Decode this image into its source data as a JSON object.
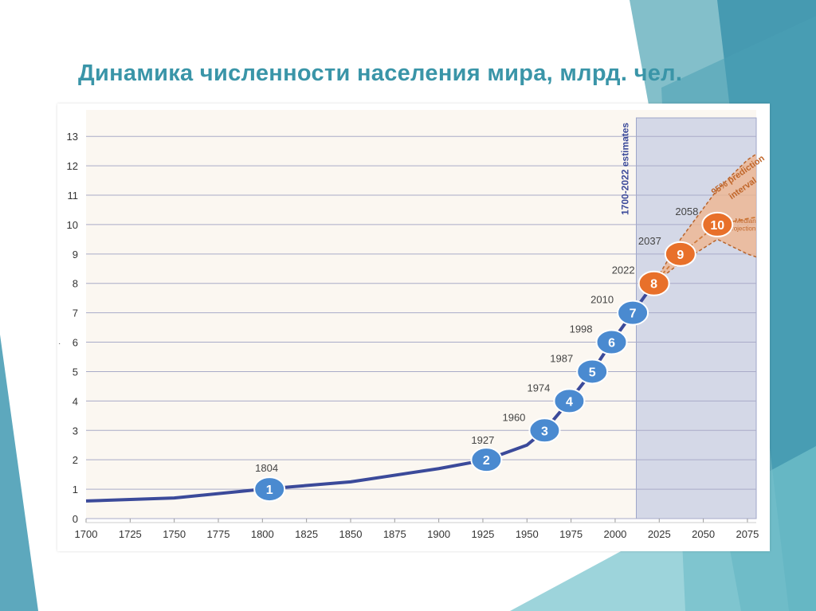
{
  "slide": {
    "title": "Динамика численности населения мира, млрд. чел.",
    "accent_color": "#3a95a8"
  },
  "chart_data": {
    "type": "line",
    "title": "",
    "xlabel": "",
    "ylabel": "",
    "xlim": [
      1700,
      2080
    ],
    "ylim": [
      0,
      13
    ],
    "grid": true,
    "x_ticks": [
      1700,
      1725,
      1750,
      1775,
      1800,
      1825,
      1850,
      1875,
      1900,
      1925,
      1950,
      1975,
      2000,
      2025,
      2050,
      2075
    ],
    "x_tick_labels": [
      "1700",
      "1725",
      "1750",
      "1775",
      "1800",
      "1825",
      "1850",
      "1875",
      "1900",
      "1925",
      "1950",
      "1975",
      "2000",
      "2025",
      "2050",
      "2075"
    ],
    "y_ticks": [
      0,
      1,
      2,
      3,
      4,
      5,
      6,
      7,
      8,
      9,
      10,
      11,
      12,
      13
    ],
    "y_tick_labels": [
      "0",
      "1",
      "2",
      "3",
      "4",
      "5",
      "6",
      "7",
      "8",
      "9",
      "10",
      "11",
      "12",
      "13"
    ],
    "estimates_region": {
      "label": "1700-2022 estimates",
      "x_start": 2012,
      "x_end": 2080,
      "color": "#d4d8e7"
    },
    "series": [
      {
        "name": "estimates",
        "color": "#3b4a9a",
        "x": [
          1700,
          1750,
          1800,
          1850,
          1900,
          1927,
          1950,
          1960,
          1974,
          1987,
          1998,
          2010,
          2022
        ],
        "y": [
          0.6,
          0.7,
          1.0,
          1.25,
          1.7,
          2.0,
          2.5,
          3.0,
          4.0,
          5.0,
          6.0,
          7.0,
          8.0
        ]
      },
      {
        "name": "Median projection",
        "color": "#cf7a3a",
        "x": [
          2022,
          2037,
          2058,
          2075,
          2080
        ],
        "y": [
          8.0,
          9.0,
          10.0,
          10.2,
          10.25
        ]
      }
    ],
    "prediction_interval": {
      "label_line1": "95% prediction",
      "label_line2": "interval",
      "median_label_line1": "Median",
      "median_label_line2": "projection",
      "color": "#f2b48b",
      "x": [
        2022,
        2037,
        2058,
        2075,
        2080
      ],
      "upper": [
        8.0,
        9.5,
        11.2,
        12.2,
        12.4
      ],
      "lower": [
        8.0,
        8.7,
        9.5,
        9.0,
        8.9
      ]
    },
    "milestones": [
      {
        "label": "1",
        "year": "1804",
        "x": 1804,
        "y": 1,
        "color": "#4a8ad0"
      },
      {
        "label": "2",
        "year": "1927",
        "x": 1927,
        "y": 2,
        "color": "#4a8ad0"
      },
      {
        "label": "3",
        "year": "1960",
        "x": 1960,
        "y": 3,
        "color": "#4a8ad0"
      },
      {
        "label": "4",
        "year": "1974",
        "x": 1974,
        "y": 4,
        "color": "#4a8ad0"
      },
      {
        "label": "5",
        "year": "1987",
        "x": 1987,
        "y": 5,
        "color": "#4a8ad0"
      },
      {
        "label": "6",
        "year": "1998",
        "x": 1998,
        "y": 6,
        "color": "#4a8ad0"
      },
      {
        "label": "7",
        "year": "2010",
        "x": 2010,
        "y": 7,
        "color": "#4a8ad0"
      },
      {
        "label": "8",
        "year": "2022",
        "x": 2022,
        "y": 8,
        "color": "#e8702a"
      },
      {
        "label": "9",
        "year": "2037",
        "x": 2037,
        "y": 9,
        "color": "#e8702a"
      },
      {
        "label": "10",
        "year": "2058",
        "x": 2058,
        "y": 10,
        "color": "#e8702a"
      }
    ]
  }
}
